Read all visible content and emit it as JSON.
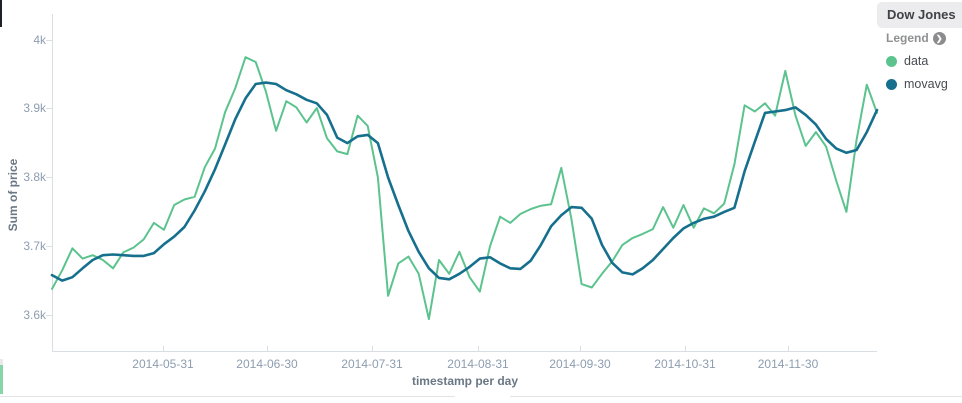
{
  "panel": {
    "title": "Dow Jones"
  },
  "legend": {
    "heading": "Legend",
    "items": [
      {
        "label": "data",
        "color": "#5cc38e"
      },
      {
        "label": "movavg",
        "color": "#16708d"
      }
    ]
  },
  "axes": {
    "y": {
      "title": "Sum of price",
      "ticks": [
        "4k",
        "3.9k",
        "3.8k",
        "3.7k",
        "3.6k"
      ]
    },
    "x": {
      "title": "timestamp per day",
      "ticks": [
        "2014-05-31",
        "2014-06-30",
        "2014-07-31",
        "2014-08-31",
        "2014-09-30",
        "2014-10-31",
        "2014-11-30"
      ]
    }
  },
  "chart_data": {
    "type": "line",
    "title": "Dow Jones",
    "xlabel": "timestamp per day",
    "ylabel": "Sum of price",
    "ylim": [
      3560,
      4005
    ],
    "y_axis_ticks": [
      3600,
      3700,
      3800,
      3900,
      4000
    ],
    "grid": false,
    "legend_position": "right",
    "x": [
      "2014-04-28",
      "2014-05-01",
      "2014-05-04",
      "2014-05-07",
      "2014-05-10",
      "2014-05-13",
      "2014-05-16",
      "2014-05-19",
      "2014-05-22",
      "2014-05-25",
      "2014-05-28",
      "2014-05-31",
      "2014-06-03",
      "2014-06-06",
      "2014-06-09",
      "2014-06-12",
      "2014-06-15",
      "2014-06-18",
      "2014-06-21",
      "2014-06-24",
      "2014-06-27",
      "2014-06-30",
      "2014-07-03",
      "2014-07-06",
      "2014-07-09",
      "2014-07-12",
      "2014-07-15",
      "2014-07-18",
      "2014-07-21",
      "2014-07-24",
      "2014-07-27",
      "2014-07-30",
      "2014-08-02",
      "2014-08-05",
      "2014-08-08",
      "2014-08-11",
      "2014-08-14",
      "2014-08-17",
      "2014-08-20",
      "2014-08-23",
      "2014-08-26",
      "2014-08-29",
      "2014-09-01",
      "2014-09-04",
      "2014-09-07",
      "2014-09-10",
      "2014-09-13",
      "2014-09-16",
      "2014-09-19",
      "2014-09-22",
      "2014-09-25",
      "2014-09-28",
      "2014-10-01",
      "2014-10-04",
      "2014-10-07",
      "2014-10-10",
      "2014-10-13",
      "2014-10-16",
      "2014-10-19",
      "2014-10-22",
      "2014-10-25",
      "2014-10-28",
      "2014-10-31",
      "2014-11-03",
      "2014-11-06",
      "2014-11-09",
      "2014-11-12",
      "2014-11-15",
      "2014-11-18",
      "2014-11-21",
      "2014-11-24",
      "2014-11-27",
      "2014-11-30",
      "2014-12-03",
      "2014-12-06",
      "2014-12-09",
      "2014-12-12",
      "2014-12-15",
      "2014-12-18",
      "2014-12-21",
      "2014-12-24",
      "2014-12-27"
    ],
    "series": [
      {
        "name": "data",
        "color": "#5cc38e",
        "values": [
          3638,
          3665,
          3697,
          3682,
          3687,
          3680,
          3668,
          3691,
          3698,
          3710,
          3734,
          3724,
          3760,
          3768,
          3772,
          3815,
          3842,
          3895,
          3930,
          3975,
          3968,
          3925,
          3868,
          3911,
          3902,
          3880,
          3901,
          3857,
          3838,
          3834,
          3890,
          3875,
          3800,
          3628,
          3675,
          3685,
          3660,
          3594,
          3680,
          3660,
          3692,
          3655,
          3634,
          3700,
          3743,
          3734,
          3747,
          3754,
          3759,
          3761,
          3814,
          3740,
          3645,
          3640,
          3660,
          3678,
          3702,
          3712,
          3718,
          3725,
          3757,
          3727,
          3760,
          3727,
          3755,
          3748,
          3762,
          3819,
          3905,
          3896,
          3908,
          3890,
          3955,
          3890,
          3846,
          3866,
          3845,
          3795,
          3750,
          3855,
          3935,
          3894
        ]
      },
      {
        "name": "movavg",
        "color": "#16708d",
        "values": [
          3658,
          3650,
          3655,
          3668,
          3680,
          3687,
          3688,
          3687,
          3686,
          3686,
          3690,
          3703,
          3714,
          3728,
          3752,
          3780,
          3812,
          3848,
          3885,
          3915,
          3936,
          3938,
          3936,
          3927,
          3921,
          3913,
          3908,
          3891,
          3858,
          3850,
          3860,
          3862,
          3850,
          3800,
          3760,
          3722,
          3692,
          3668,
          3654,
          3652,
          3660,
          3670,
          3682,
          3684,
          3675,
          3668,
          3667,
          3679,
          3702,
          3729,
          3745,
          3757,
          3756,
          3740,
          3702,
          3676,
          3662,
          3659,
          3668,
          3680,
          3696,
          3712,
          3726,
          3734,
          3740,
          3743,
          3750,
          3756,
          3809,
          3852,
          3894,
          3896,
          3898,
          3902,
          3891,
          3877,
          3856,
          3842,
          3836,
          3840,
          3866,
          3898
        ]
      }
    ]
  }
}
